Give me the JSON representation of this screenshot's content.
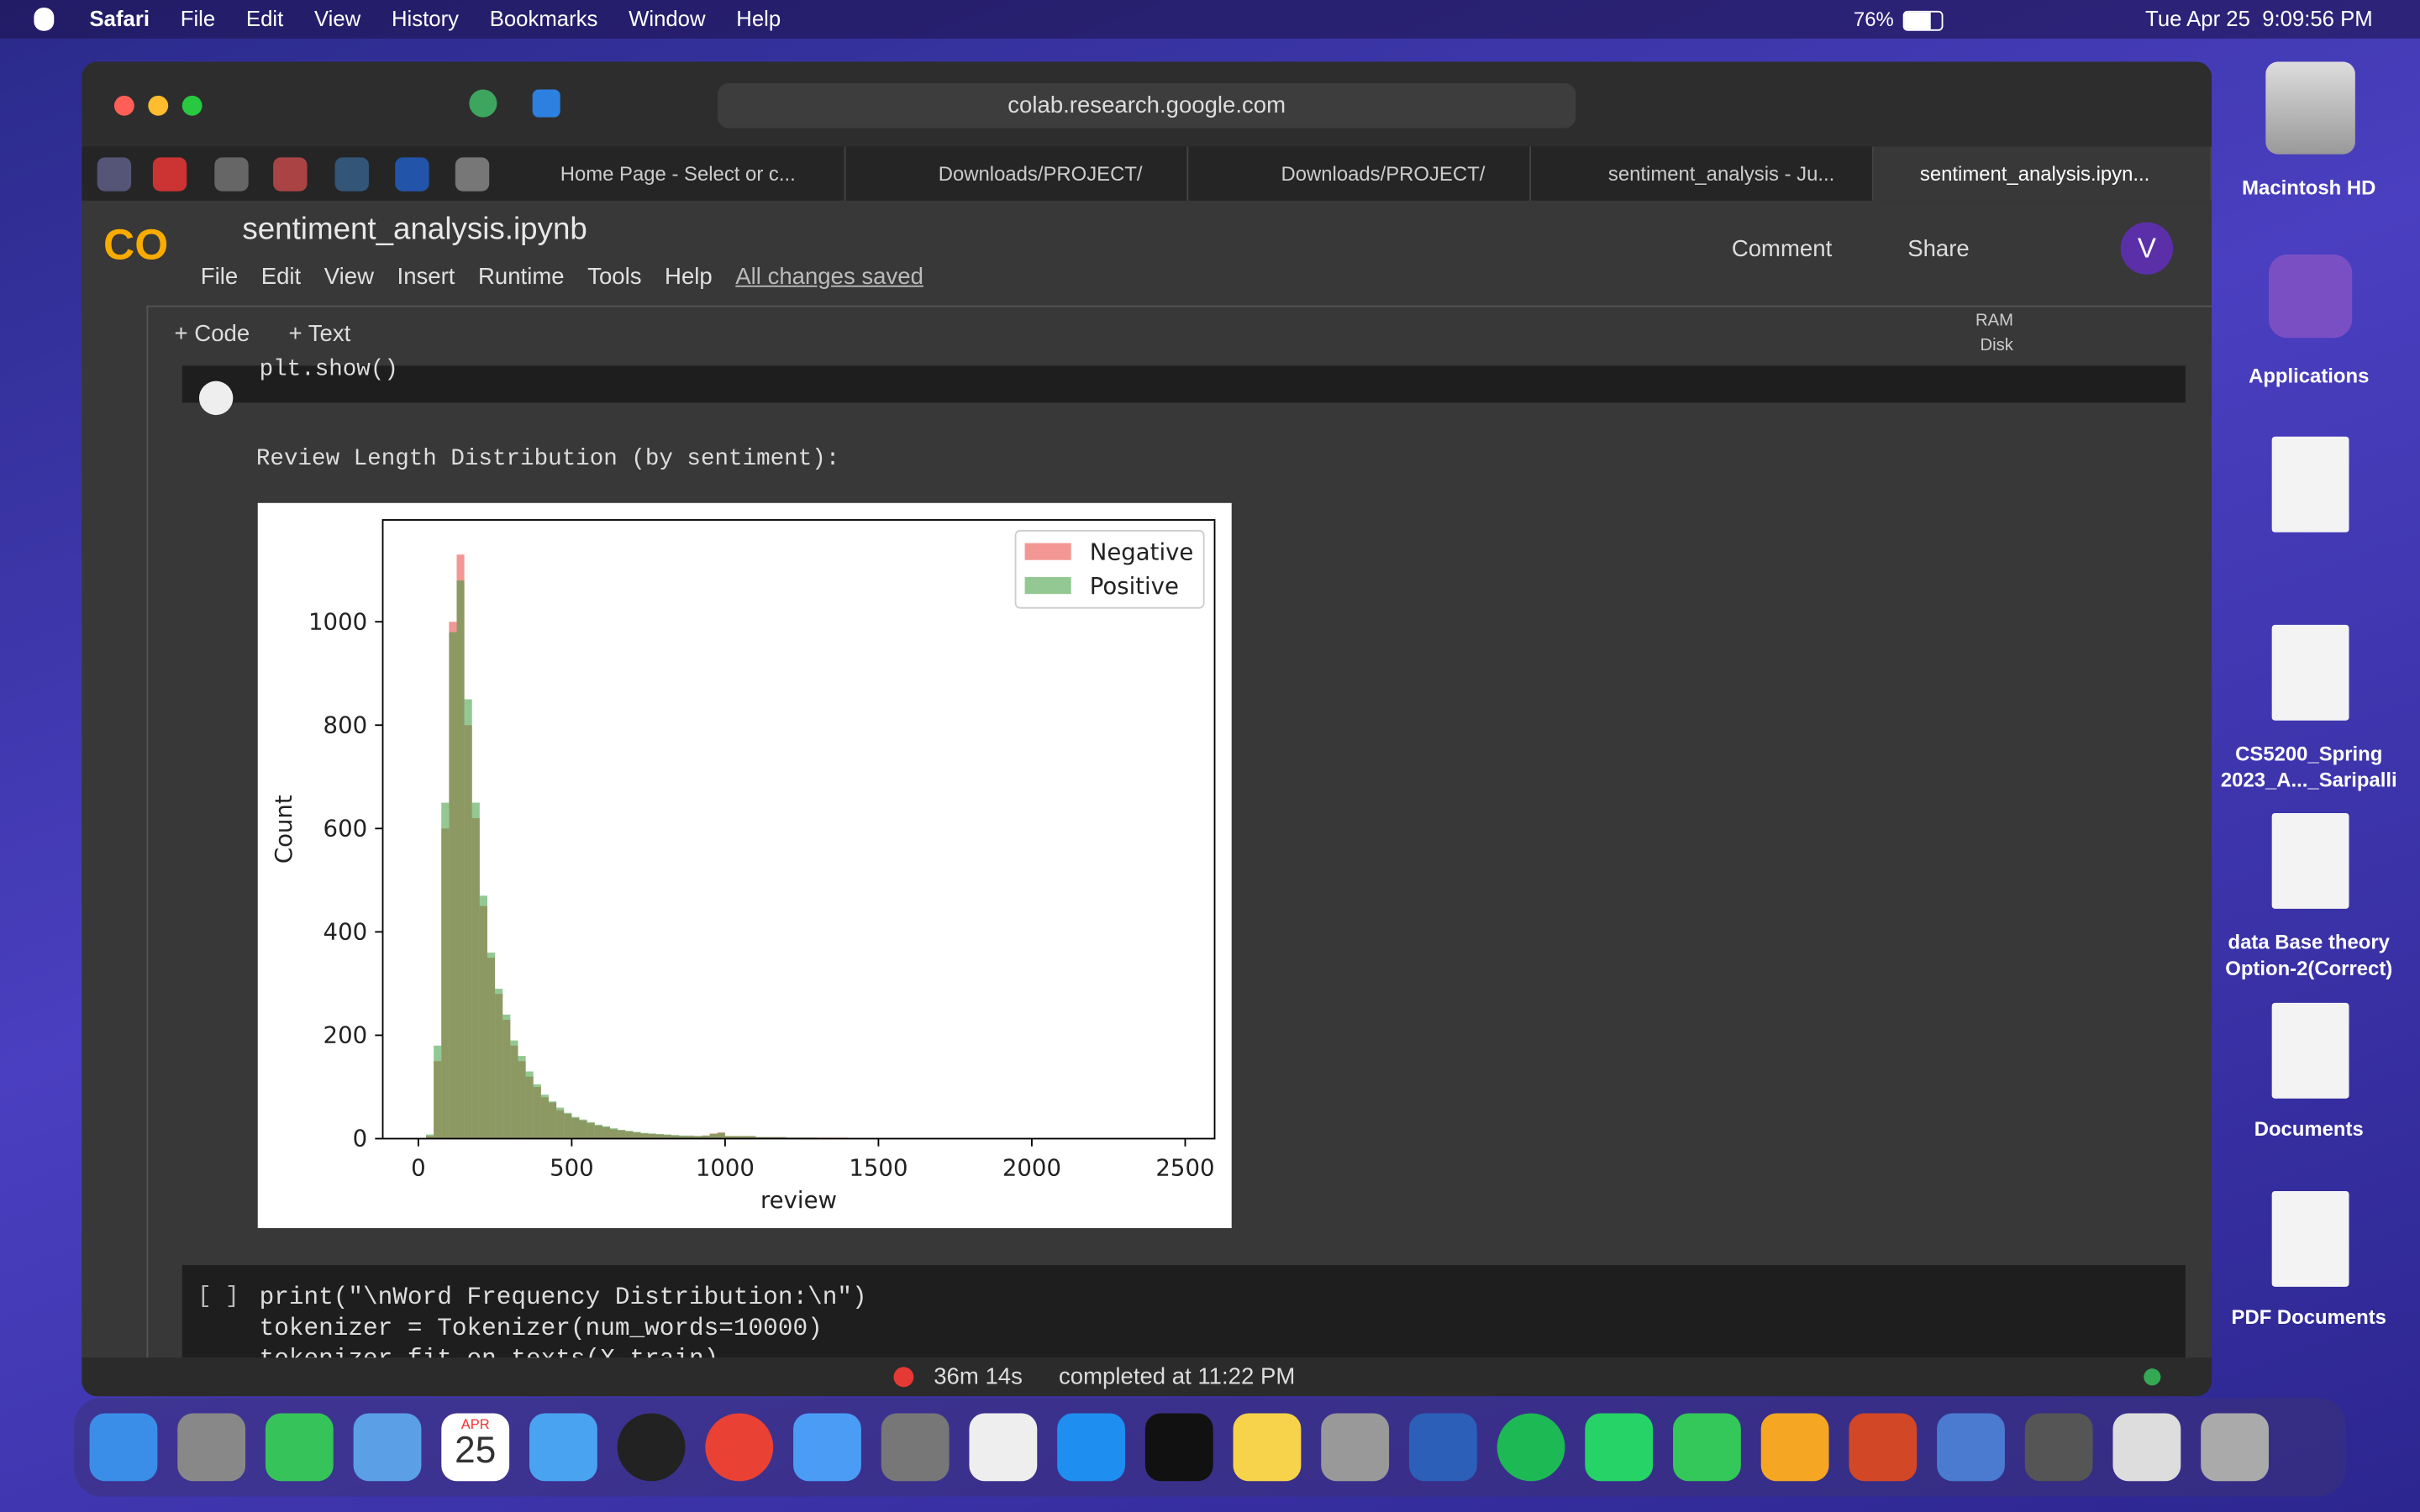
{
  "menubar": {
    "app": "Safari",
    "menus": [
      "File",
      "Edit",
      "View",
      "History",
      "Bookmarks",
      "Window",
      "Help"
    ],
    "battery": "76%",
    "clock": "Tue Apr 25  9:09:56 PM"
  },
  "browser": {
    "url": "colab.research.google.com",
    "tabs": [
      "Home Page - Select or c...",
      "Downloads/PROJECT/",
      "Downloads/PROJECT/",
      "sentiment_analysis - Ju...",
      "sentiment_analysis.ipyn..."
    ]
  },
  "colab": {
    "filename": "sentiment_analysis.ipynb",
    "menus": [
      "File",
      "Edit",
      "View",
      "Insert",
      "Runtime",
      "Tools",
      "Help"
    ],
    "saved": "All changes saved",
    "comment": "Comment",
    "share": "Share",
    "avatar": "V",
    "add_code": "+ Code",
    "add_text": "+ Text",
    "ram": "RAM",
    "disk": "Disk"
  },
  "cells": {
    "prev_code": "plt.show()",
    "output_text": "Review Length Distribution (by sentiment):",
    "next_prompt": "[ ]",
    "next_code": [
      "print(\"\\nWord Frequency Distribution:\\n\")",
      "tokenizer = Tokenizer(num_words=10000)",
      "tokenizer.fit_on_texts(X_train)"
    ]
  },
  "status": {
    "elapsed": "36m 14s",
    "completed": "completed at 11:22 PM"
  },
  "desktop": [
    "Macintosh HD",
    "Applications",
    "CS5200_Spring\n2023_A..._Saripalli",
    "data Base theory\nOption-2(Correct)",
    "Documents",
    "PDF Documents"
  ],
  "dock": {
    "month": "APR",
    "day": "25"
  },
  "chart_data": {
    "type": "histogram",
    "xlabel": "review",
    "ylabel": "Count",
    "legend": "upper right",
    "bins": [
      0,
      25,
      50,
      75,
      100,
      125,
      150,
      175,
      200,
      225,
      250,
      275,
      300,
      325,
      350,
      375,
      400,
      425,
      450,
      475,
      500,
      525,
      550,
      575,
      600,
      625,
      650,
      675,
      700,
      725,
      750,
      775,
      800,
      825,
      850,
      875,
      900,
      925,
      950,
      975,
      1000,
      1100,
      1200,
      1300,
      1400,
      1500,
      1600,
      1700,
      1800,
      1900,
      2000,
      2100,
      2200,
      2300,
      2400,
      2500
    ],
    "series": [
      {
        "name": "Negative",
        "color": "#e8413c",
        "values": [
          0,
          5,
          150,
          600,
          1000,
          1130,
          800,
          620,
          450,
          350,
          280,
          230,
          180,
          150,
          120,
          100,
          80,
          70,
          55,
          48,
          40,
          35,
          30,
          25,
          22,
          18,
          16,
          14,
          12,
          10,
          9,
          8,
          7,
          6,
          5,
          5,
          5,
          6,
          10,
          12,
          5,
          3,
          2,
          2,
          1,
          1,
          1,
          1,
          1,
          0,
          0,
          0,
          0,
          0,
          1
        ]
      },
      {
        "name": "Positive",
        "color": "#3a9a3a",
        "values": [
          0,
          8,
          180,
          650,
          980,
          1080,
          850,
          650,
          470,
          360,
          290,
          240,
          190,
          160,
          130,
          105,
          85,
          72,
          60,
          50,
          42,
          37,
          32,
          27,
          24,
          20,
          17,
          15,
          13,
          11,
          10,
          9,
          8,
          7,
          6,
          6,
          5,
          6,
          9,
          11,
          5,
          3,
          2,
          1,
          1,
          1,
          1,
          1,
          1,
          0,
          0,
          0,
          0,
          0,
          1
        ]
      }
    ],
    "xlim": [
      -116,
      2596
    ],
    "ylim": [
      0,
      1197
    ],
    "xticks": [
      0,
      500,
      1000,
      1500,
      2000,
      2500
    ],
    "yticks": [
      0,
      200,
      400,
      600,
      800,
      1000
    ]
  }
}
